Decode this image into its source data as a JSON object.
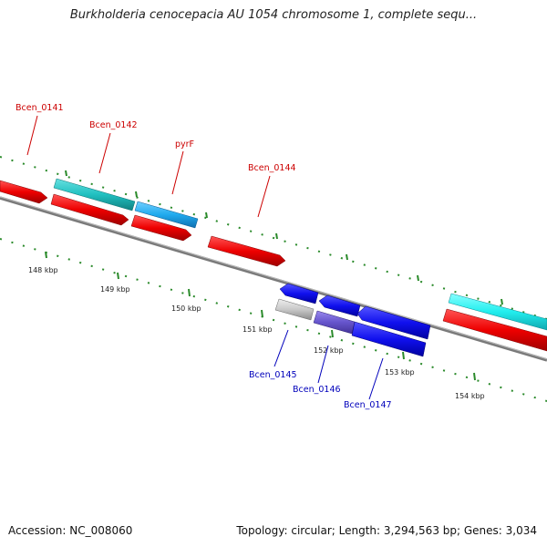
{
  "title": "Burkholderia cenocepacia AU 1054 chromosome 1, complete sequ...",
  "footer": {
    "accession": "Accession: NC_008060",
    "summary": "Topology: circular; Length: 3,294,563 bp; Genes: 3,034"
  },
  "colors": {
    "backbone": "#888888",
    "ticks": "#2a8a2a",
    "label_top": "#cc0000",
    "label_bottom": "#0000bb"
  },
  "ruler": {
    "ticks": [
      {
        "label": "148 kbp"
      },
      {
        "label": "149 kbp"
      },
      {
        "label": "150 kbp"
      },
      {
        "label": "151 kbp"
      },
      {
        "label": "152 kbp"
      },
      {
        "label": "153 kbp"
      },
      {
        "label": "154 kbp"
      }
    ]
  },
  "genes": {
    "top": [
      {
        "name": "Bcen_0141"
      },
      {
        "name": "Bcen_0142"
      },
      {
        "name": "pyrF"
      },
      {
        "name": "Bcen_0144"
      }
    ],
    "bottom": [
      {
        "name": "Bcen_0145"
      },
      {
        "name": "Bcen_0146"
      },
      {
        "name": "Bcen_0147"
      }
    ]
  }
}
